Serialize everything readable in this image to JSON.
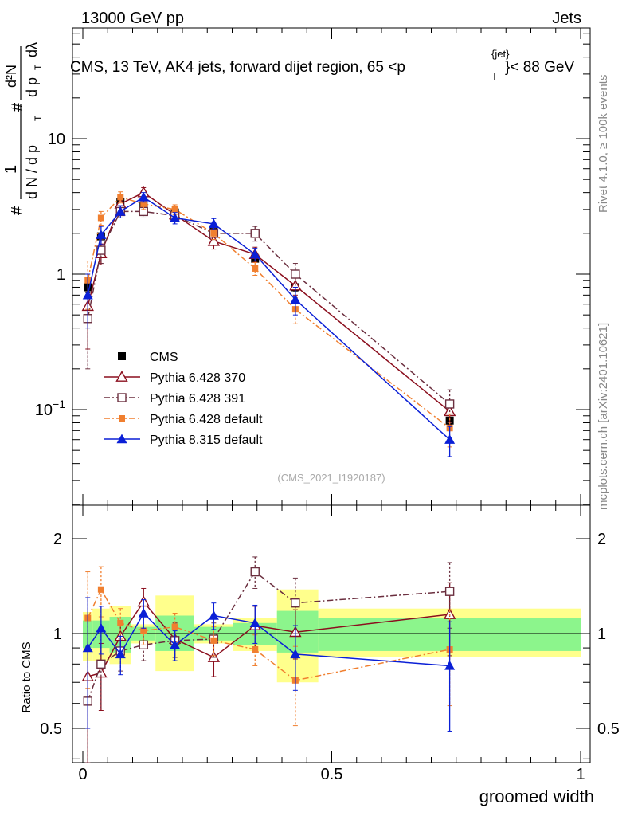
{
  "header": {
    "left": "13000 GeV pp",
    "right": "Jets"
  },
  "side_labels": {
    "rivet": "Rivet 4.1.0, ≥ 100k events",
    "mcplots": "mcplots.cern.ch [arXiv:2401.10621]"
  },
  "colors": {
    "cms": "#000000",
    "p370": "#8b0f1e",
    "p391": "#6b2f3f",
    "pdef": "#f07f2f",
    "p8": "#0a1fd6",
    "band_inner": "#8cf58c",
    "band_outer": "#ffff8c"
  },
  "chart_data": {
    "type": "line",
    "title": "CMS, 13 TeV, AK4 jets, forward dijet region, 65 <p_T^{jet}< 88 GeV",
    "title_parts": {
      "main": "CMS, 13 TeV, AK4 jets, forward dijet region, 65 <p",
      "sup": "{jet}",
      "sub": "T",
      "tail": "}< 88 GeV"
    },
    "xlabel": "groomed width",
    "ylabel": "1/N dN/dp_T d^2N/dp_T dλ",
    "ylabel_parts": {
      "hash": "#",
      "one": "1",
      "dN": "d N / d p",
      "sub": "T",
      "d2N": "d²N",
      "dp": "d p",
      "dlam": "dλ"
    },
    "ratio_ylabel": "Ratio to CMS",
    "watermark": "(CMS_2021_I1920187)",
    "xlim": [
      0,
      1
    ],
    "ylim": [
      0.022,
      80
    ],
    "yscale": "log",
    "ratio_ylim": [
      0.37,
      2.35
    ],
    "x_ticks": [
      0,
      0.5,
      1
    ],
    "x_tick_labels": [
      "0",
      "0.5",
      "1"
    ],
    "main_ticks": [
      {
        "value": 0.1,
        "label_base": "10",
        "label_exp": "−1"
      },
      {
        "value": 1,
        "label_base": "1",
        "label_exp": ""
      },
      {
        "value": 10,
        "label_base": "10",
        "label_exp": ""
      }
    ],
    "ratio_ticks": [
      {
        "value": 0.5,
        "label": "0.5"
      },
      {
        "value": 1,
        "label": "1"
      },
      {
        "value": 2,
        "label": "2"
      }
    ],
    "bins": [
      {
        "lo": 0.0,
        "hi": 0.0195,
        "x": 0.01
      },
      {
        "lo": 0.0195,
        "hi": 0.0537,
        "x": 0.0366
      },
      {
        "lo": 0.0537,
        "hi": 0.0976,
        "x": 0.0756
      },
      {
        "lo": 0.0976,
        "hi": 0.146,
        "x": 0.122
      },
      {
        "lo": 0.146,
        "hi": 0.224,
        "x": 0.185
      },
      {
        "lo": 0.224,
        "hi": 0.302,
        "x": 0.263
      },
      {
        "lo": 0.302,
        "hi": 0.39,
        "x": 0.346
      },
      {
        "lo": 0.39,
        "hi": 0.473,
        "x": 0.427
      },
      {
        "lo": 0.473,
        "hi": 1.0,
        "x": 0.737
      }
    ],
    "band_inner": [
      [
        0.9,
        1.1
      ],
      [
        0.9,
        1.1
      ],
      [
        0.87,
        1.13
      ],
      [
        0.95,
        1.05
      ],
      [
        0.88,
        1.14
      ],
      [
        0.95,
        1.05
      ],
      [
        0.92,
        1.08
      ],
      [
        0.87,
        1.18
      ],
      [
        0.88,
        1.12
      ]
    ],
    "band_outer": [
      [
        0.82,
        1.17
      ],
      [
        0.82,
        1.2
      ],
      [
        0.8,
        1.22
      ],
      [
        0.93,
        1.07
      ],
      [
        0.76,
        1.32
      ],
      [
        0.93,
        1.07
      ],
      [
        0.88,
        1.12
      ],
      [
        0.7,
        1.38
      ],
      [
        0.84,
        1.2
      ]
    ],
    "series": [
      {
        "key": "cms",
        "name": "CMS",
        "marker": "square-filled",
        "line": "none",
        "values": [
          0.8,
          1.9,
          3.4,
          3.2,
          2.85,
          2.15,
          1.3,
          0.8,
          0.083
        ],
        "err_lo": [
          0.07,
          0.1,
          0.15,
          0.12,
          0.1,
          0.1,
          0.06,
          0.05,
          0.005
        ],
        "err_hi": [
          0.07,
          0.1,
          0.15,
          0.12,
          0.1,
          0.1,
          0.06,
          0.05,
          0.005
        ],
        "ratio": null
      },
      {
        "key": "p370",
        "name": "Pythia 6.428 370",
        "marker": "triangle-open",
        "line": "solid",
        "values": [
          0.58,
          1.42,
          3.3,
          4.0,
          2.75,
          1.75,
          1.4,
          0.82,
          0.097
        ],
        "err_lo": [
          0.3,
          0.25,
          0.35,
          0.35,
          0.25,
          0.22,
          0.18,
          0.12,
          0.02
        ],
        "err_hi": [
          0.3,
          0.25,
          0.35,
          0.35,
          0.25,
          0.22,
          0.18,
          0.12,
          0.02
        ],
        "ratio": [
          0.73,
          0.75,
          0.98,
          1.26,
          0.96,
          0.84,
          1.06,
          1.01,
          1.15
        ],
        "ratio_err": [
          0.38,
          0.18,
          0.12,
          0.13,
          0.12,
          0.11,
          0.16,
          0.18,
          0.3
        ]
      },
      {
        "key": "p391",
        "name": "Pythia 6.428 391",
        "marker": "square-open",
        "line": "dashdot",
        "values": [
          0.47,
          1.5,
          2.9,
          2.9,
          2.7,
          2.0,
          2.0,
          1.0,
          0.11
        ],
        "err_lo": [
          0.27,
          0.3,
          0.3,
          0.3,
          0.25,
          0.2,
          0.25,
          0.2,
          0.03
        ],
        "err_hi": [
          0.27,
          0.3,
          0.3,
          0.3,
          0.25,
          0.2,
          0.25,
          0.2,
          0.03
        ],
        "ratio": [
          0.61,
          0.8,
          0.88,
          0.92,
          0.95,
          0.96,
          1.57,
          1.25,
          1.36
        ],
        "ratio_err": [
          0.3,
          0.22,
          0.12,
          0.1,
          0.11,
          0.12,
          0.18,
          0.25,
          0.32
        ]
      },
      {
        "key": "pdef",
        "name": "Pythia 6.428 default",
        "marker": "square-small",
        "line": "dashdot",
        "values": [
          0.9,
          2.6,
          3.7,
          3.3,
          3.0,
          2.0,
          1.1,
          0.55,
          0.073
        ],
        "err_lo": [
          0.35,
          0.3,
          0.35,
          0.3,
          0.25,
          0.2,
          0.12,
          0.12,
          0.02
        ],
        "err_hi": [
          0.35,
          0.3,
          0.35,
          0.3,
          0.25,
          0.2,
          0.12,
          0.12,
          0.02
        ],
        "ratio": [
          1.12,
          1.38,
          1.08,
          1.02,
          1.05,
          0.95,
          0.89,
          0.71,
          0.89
        ],
        "ratio_err": [
          0.45,
          0.25,
          0.12,
          0.1,
          0.11,
          0.1,
          0.1,
          0.2,
          0.3
        ]
      },
      {
        "key": "p8",
        "name": "Pythia 8.315 default",
        "marker": "triangle-filled",
        "line": "solid",
        "values": [
          0.7,
          1.95,
          2.9,
          3.7,
          2.6,
          2.35,
          1.4,
          0.65,
          0.06
        ],
        "err_lo": [
          0.3,
          0.3,
          0.3,
          0.3,
          0.25,
          0.22,
          0.15,
          0.15,
          0.015
        ],
        "err_hi": [
          0.3,
          0.3,
          0.3,
          0.3,
          0.25,
          0.22,
          0.15,
          0.15,
          0.015
        ],
        "ratio": [
          0.9,
          1.04,
          0.86,
          1.16,
          0.92,
          1.14,
          1.08,
          0.86,
          0.79
        ],
        "ratio_err": [
          0.4,
          0.18,
          0.12,
          0.12,
          0.1,
          0.11,
          0.15,
          0.2,
          0.3
        ]
      }
    ],
    "legend_position": "lower-left"
  }
}
